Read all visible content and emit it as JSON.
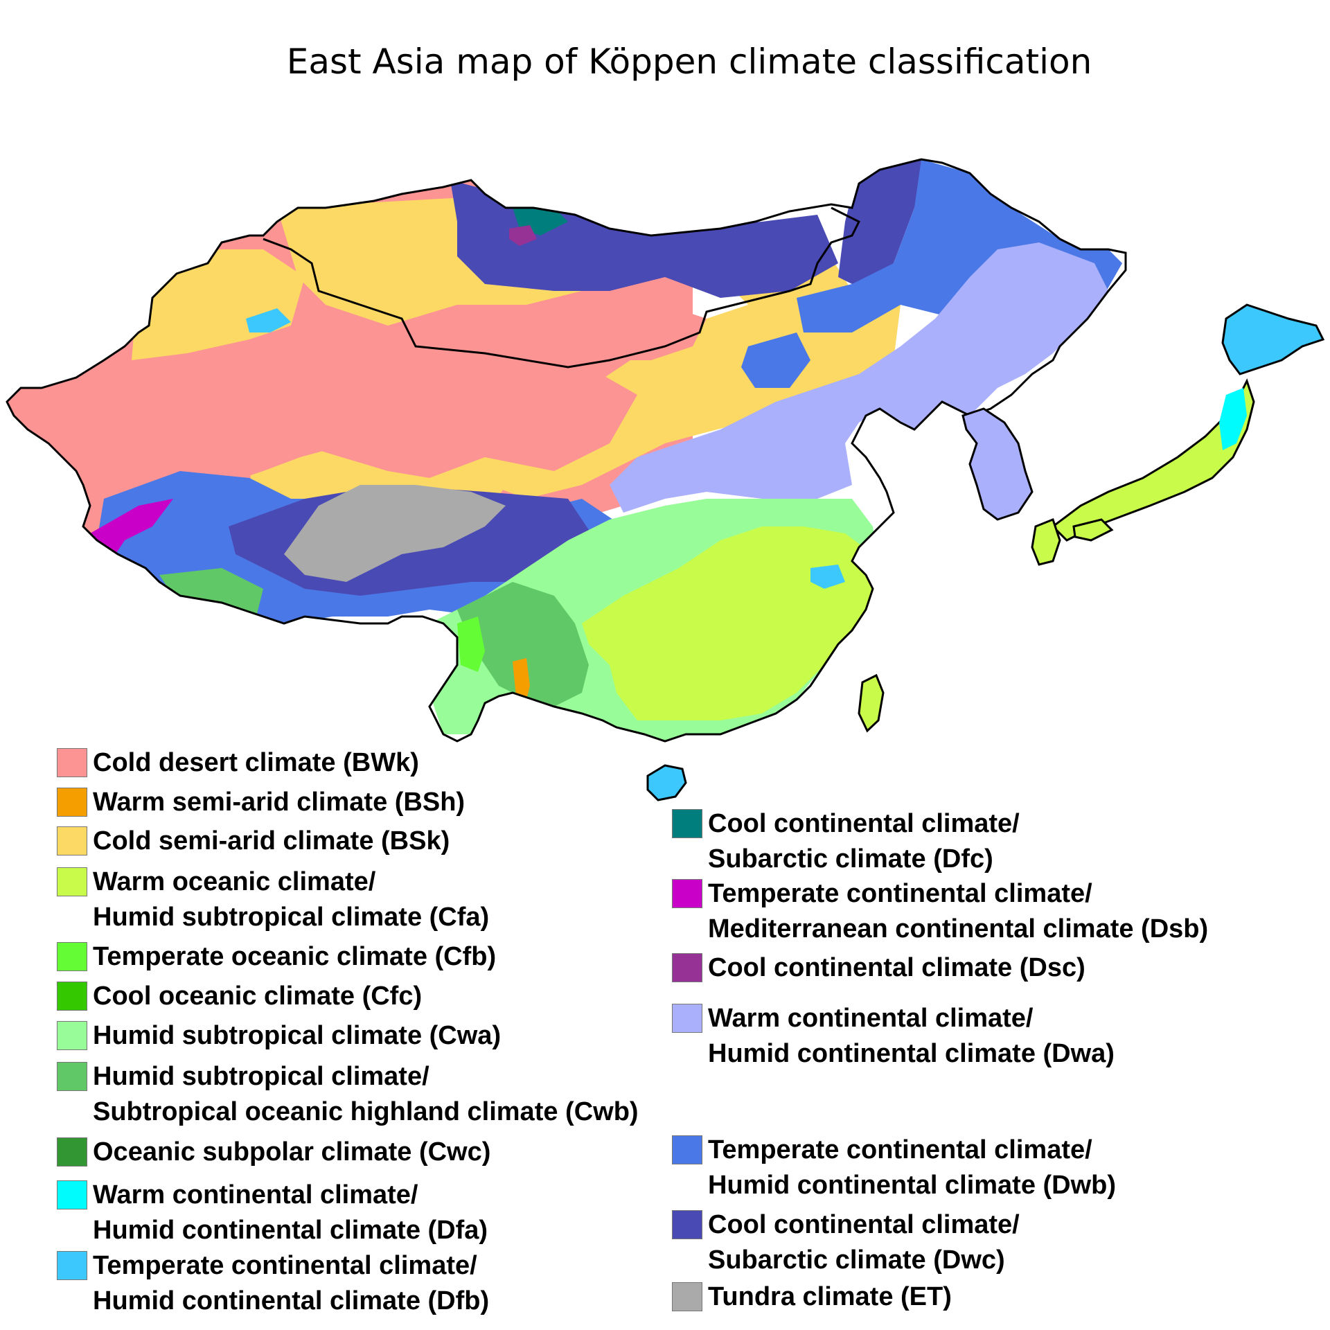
{
  "title": "East Asia map of Köppen climate classification",
  "legend": [
    {
      "label": "Cold desert climate (BWk)",
      "color": "#fc9494"
    },
    {
      "label": "Warm semi-arid climate (BSh)",
      "color": "#f59e00"
    },
    {
      "label": "Cold semi-arid climate (BSk)",
      "color": "#fcd964"
    },
    {
      "label": "Warm oceanic climate/\nHumid subtropical climate (Cfa)",
      "color": "#c9fc4a"
    },
    {
      "label": "Temperate oceanic climate (Cfb)",
      "color": "#64fc34"
    },
    {
      "label": "Cool oceanic climate (Cfc)",
      "color": "#34c800"
    },
    {
      "label": "Humid subtropical climate (Cwa)",
      "color": "#98fc98"
    },
    {
      "label": "Humid subtropical climate/\nSubtropical oceanic highland climate (Cwb)",
      "color": "#60c866"
    },
    {
      "label": "Oceanic subpolar climate (Cwc)",
      "color": "#329632"
    },
    {
      "label": "Warm continental climate/\nHumid continental climate (Dfa)",
      "color": "#00fcfc"
    },
    {
      "label": "Temperate continental climate/\nHumid continental climate (Dfb)",
      "color": "#3cc8fc"
    },
    {
      "label": "Cool continental climate/\nSubarctic climate (Dfc)",
      "color": "#007d7d"
    },
    {
      "label": "Temperate continental climate/\nMediterranean continental climate (Dsb)",
      "color": "#c800c8"
    },
    {
      "label": "Cool continental climate (Dsc)",
      "color": "#963296"
    },
    {
      "label": "Warm continental climate/\nHumid continental climate (Dwa)",
      "color": "#aab0fc"
    },
    {
      "label": "Temperate continental climate/\nHumid continental climate (Dwb)",
      "color": "#4a78e6"
    },
    {
      "label": "Cool continental climate/\nSubarctic climate (Dwc)",
      "color": "#4a4ab4"
    },
    {
      "label": "Tundra climate (ET)",
      "color": "#aaaaaa"
    }
  ]
}
